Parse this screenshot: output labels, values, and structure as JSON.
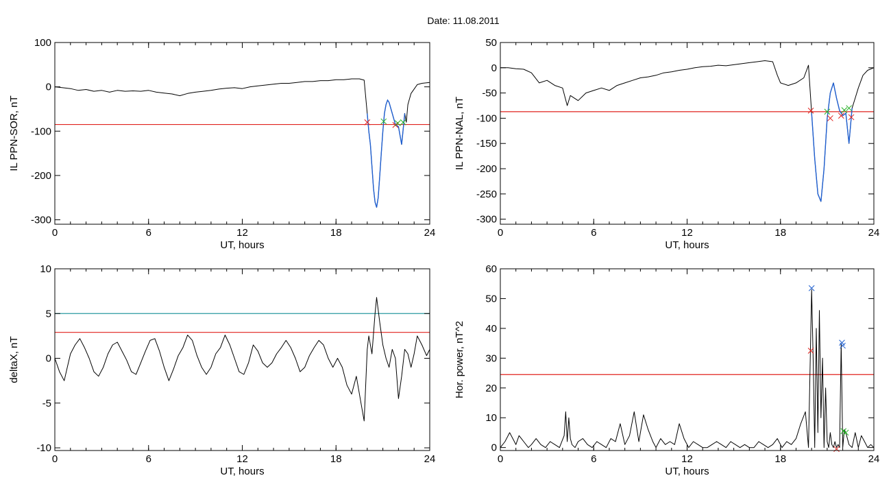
{
  "figure_title": "Date:  11.08.2011",
  "colors": {
    "trace": "#000000",
    "highlight": "#1f5fd0",
    "threshold": "#e0201c",
    "threshold2": "#2a9aa0",
    "marker_red": "#e0201c",
    "marker_green": "#22b022",
    "marker_blue": "#2060d0"
  },
  "chart_data": [
    {
      "id": "sor",
      "type": "line",
      "xlabel": "UT, hours",
      "ylabel": "IL PPN-SOR, nT",
      "xlim": [
        0,
        24
      ],
      "ylim": [
        -310,
        100
      ],
      "xticks": [
        "0",
        "6",
        "12",
        "18",
        "24"
      ],
      "yticks": [
        "100",
        "0",
        "-100",
        "-200",
        "-300"
      ],
      "series": [
        {
          "x": [
            0,
            0.5,
            1,
            1.5,
            2,
            2.5,
            3,
            3.5,
            4,
            4.5,
            5,
            5.5,
            6,
            6.5,
            7,
            7.5,
            8,
            8.5,
            9,
            9.5,
            10,
            10.5,
            11,
            11.5,
            12,
            12.5,
            13,
            13.5,
            14,
            14.5,
            15,
            15.5,
            16,
            16.5,
            17,
            17.5,
            18,
            18.5,
            19,
            19.5,
            19.8,
            20,
            20.1,
            20.2,
            20.3,
            20.4,
            20.5,
            20.6,
            20.7,
            20.8,
            20.9,
            21,
            21.1,
            21.2,
            21.3,
            21.4,
            21.6,
            21.8,
            22,
            22.1,
            22.2,
            22.3,
            22.4,
            22.5,
            22.6,
            22.8,
            23,
            23.2,
            23.5,
            24
          ],
          "y": [
            0,
            -2,
            -4,
            -8,
            -6,
            -10,
            -8,
            -12,
            -8,
            -10,
            -9,
            -10,
            -8,
            -12,
            -14,
            -16,
            -20,
            -15,
            -12,
            -10,
            -8,
            -5,
            -3,
            -2,
            -4,
            0,
            2,
            4,
            6,
            8,
            8,
            10,
            12,
            12,
            14,
            14,
            16,
            16,
            18,
            18,
            15,
            -60,
            -100,
            -130,
            -180,
            -230,
            -260,
            -272,
            -250,
            -200,
            -150,
            -100,
            -60,
            -40,
            -30,
            -35,
            -60,
            -85,
            -90,
            -110,
            -130,
            -95,
            -60,
            -80,
            -40,
            -15,
            -5,
            5,
            8,
            10
          ]
        }
      ],
      "highlight": {
        "from": 20.0,
        "to": 22.4
      },
      "thresholds": [
        {
          "y": -85,
          "color": "#e0201c"
        }
      ],
      "markers": [
        {
          "x": 20.0,
          "y": -80,
          "color": "#e0201c"
        },
        {
          "x": 21.05,
          "y": -78,
          "color": "#22b022"
        },
        {
          "x": 21.8,
          "y": -86,
          "color": "#e0201c"
        },
        {
          "x": 21.95,
          "y": -82,
          "color": "#22b022"
        },
        {
          "x": 22.3,
          "y": -80,
          "color": "#22b022"
        }
      ]
    },
    {
      "id": "nal",
      "type": "line",
      "xlabel": "UT, hours",
      "ylabel": "IL PPN-NAL, nT",
      "xlim": [
        0,
        24
      ],
      "ylim": [
        -310,
        50
      ],
      "xticks": [
        "0",
        "6",
        "12",
        "18",
        "24"
      ],
      "yticks": [
        "50",
        "0",
        "-50",
        "-100",
        "-150",
        "-200",
        "-250",
        "-300"
      ],
      "series": [
        {
          "x": [
            0,
            0.5,
            1,
            1.5,
            2,
            2.5,
            3,
            3.5,
            4,
            4.3,
            4.5,
            5,
            5.5,
            6,
            6.5,
            7,
            7.5,
            8,
            8.5,
            9,
            9.5,
            10,
            10.5,
            11,
            11.5,
            12,
            12.5,
            13,
            13.5,
            14,
            14.5,
            15,
            15.5,
            16,
            16.5,
            17,
            17.5,
            17.8,
            18,
            18.5,
            19,
            19.5,
            19.8,
            20,
            20.2,
            20.4,
            20.6,
            20.8,
            21,
            21.2,
            21.4,
            21.6,
            21.8,
            22,
            22.2,
            22.4,
            22.6,
            22.8,
            23,
            23.3,
            23.6,
            24
          ],
          "y": [
            0,
            0,
            -2,
            -3,
            -10,
            -30,
            -25,
            -35,
            -40,
            -75,
            -55,
            -65,
            -50,
            -45,
            -40,
            -45,
            -35,
            -30,
            -25,
            -20,
            -18,
            -15,
            -10,
            -8,
            -5,
            -3,
            0,
            2,
            3,
            5,
            4,
            6,
            8,
            10,
            12,
            14,
            12,
            -15,
            -30,
            -35,
            -30,
            -20,
            5,
            -90,
            -180,
            -250,
            -265,
            -200,
            -100,
            -50,
            -30,
            -60,
            -85,
            -95,
            -90,
            -150,
            -80,
            -60,
            -40,
            -15,
            -5,
            0
          ]
        }
      ],
      "highlight": {
        "from": 20.0,
        "to": 22.6
      },
      "thresholds": [
        {
          "y": -87,
          "color": "#e0201c"
        }
      ],
      "markers": [
        {
          "x": 19.95,
          "y": -85,
          "color": "#e0201c"
        },
        {
          "x": 21.0,
          "y": -87,
          "color": "#22b022"
        },
        {
          "x": 21.2,
          "y": -100,
          "color": "#e0201c"
        },
        {
          "x": 21.9,
          "y": -95,
          "color": "#e0201c"
        },
        {
          "x": 22.1,
          "y": -84,
          "color": "#22b022"
        },
        {
          "x": 22.4,
          "y": -80,
          "color": "#22b022"
        },
        {
          "x": 22.55,
          "y": -98,
          "color": "#e0201c"
        }
      ]
    },
    {
      "id": "deltax",
      "type": "line",
      "xlabel": "UT, hours",
      "ylabel": "deltaX, nT",
      "xlim": [
        0,
        24
      ],
      "ylim": [
        -10.3,
        10
      ],
      "xticks": [
        "0",
        "6",
        "12",
        "18",
        "24"
      ],
      "yticks": [
        "10",
        "5",
        "0",
        "-5",
        "-10"
      ],
      "series": [
        {
          "x": [
            0,
            0.3,
            0.6,
            0.8,
            1,
            1.3,
            1.6,
            1.9,
            2.2,
            2.5,
            2.8,
            3.1,
            3.4,
            3.7,
            4,
            4.3,
            4.6,
            4.9,
            5.2,
            5.5,
            5.8,
            6.1,
            6.4,
            6.7,
            7,
            7.3,
            7.6,
            7.9,
            8.2,
            8.5,
            8.8,
            9.1,
            9.4,
            9.7,
            10,
            10.3,
            10.6,
            10.9,
            11.2,
            11.5,
            11.8,
            12.1,
            12.4,
            12.7,
            13,
            13.3,
            13.6,
            13.9,
            14.2,
            14.5,
            14.8,
            15.1,
            15.4,
            15.7,
            16,
            16.3,
            16.6,
            16.9,
            17.2,
            17.5,
            17.8,
            18.1,
            18.4,
            18.7,
            19,
            19.3,
            19.6,
            19.8,
            20,
            20.1,
            20.3,
            20.5,
            20.6,
            20.8,
            21,
            21.2,
            21.4,
            21.6,
            21.8,
            22,
            22.2,
            22.4,
            22.6,
            22.8,
            23,
            23.2,
            23.5,
            23.8,
            24
          ],
          "y": [
            0,
            -1.5,
            -2.5,
            -1,
            0.5,
            1.5,
            2.2,
            1.2,
            0,
            -1.5,
            -2,
            -1,
            0.5,
            1.5,
            1.8,
            0.8,
            -0.2,
            -1.5,
            -1.8,
            -0.5,
            0.8,
            2,
            2.2,
            0.8,
            -1,
            -2.5,
            -1.2,
            0.3,
            1.2,
            2.6,
            2,
            0.3,
            -1,
            -1.8,
            -1,
            0.5,
            1.2,
            2.6,
            1.5,
            0,
            -1.5,
            -1.8,
            -0.5,
            1.5,
            0.8,
            -0.5,
            -1,
            -0.5,
            0.5,
            1.2,
            2,
            1.2,
            0,
            -1.5,
            -1,
            0.3,
            1.2,
            2,
            1.5,
            0,
            -1,
            0,
            -1,
            -3,
            -4,
            -2,
            -5,
            -7,
            1,
            2.5,
            0.5,
            5,
            6.8,
            4,
            1.5,
            0,
            -1,
            1,
            0,
            -4.5,
            -2,
            1,
            0.5,
            -1,
            0.5,
            2.5,
            1.5,
            0.3,
            1
          ]
        }
      ],
      "thresholds": [
        {
          "y": 5,
          "color": "#2a9aa0"
        },
        {
          "y": 2.9,
          "color": "#e0201c"
        }
      ],
      "markers": []
    },
    {
      "id": "horpower",
      "type": "line",
      "xlabel": "UT, hours",
      "ylabel": "Hor. power, nT^2",
      "xlim": [
        0,
        24
      ],
      "ylim": [
        -1,
        60
      ],
      "xticks": [
        "0",
        "6",
        "12",
        "18",
        "24"
      ],
      "yticks": [
        "60",
        "50",
        "40",
        "30",
        "20",
        "10",
        "0"
      ],
      "series": [
        {
          "x": [
            0,
            0.3,
            0.6,
            0.8,
            1,
            1.2,
            1.5,
            1.8,
            2,
            2.3,
            2.6,
            2.9,
            3.2,
            3.5,
            3.8,
            4.1,
            4.2,
            4.3,
            4.4,
            4.5,
            4.6,
            4.8,
            5,
            5.3,
            5.6,
            5.9,
            6.2,
            6.5,
            6.8,
            7.1,
            7.4,
            7.7,
            8,
            8.3,
            8.6,
            8.9,
            9.2,
            9.5,
            9.8,
            10,
            10.3,
            10.6,
            10.9,
            11.2,
            11.5,
            11.8,
            12.1,
            12.4,
            12.7,
            13,
            13.3,
            13.6,
            13.9,
            14.2,
            14.5,
            14.8,
            15.1,
            15.4,
            15.7,
            16,
            16.3,
            16.6,
            16.9,
            17.2,
            17.5,
            17.8,
            18.1,
            18.4,
            18.7,
            19,
            19.3,
            19.6,
            19.8,
            20,
            20.1,
            20.2,
            20.3,
            20.4,
            20.5,
            20.6,
            20.7,
            20.8,
            20.9,
            21,
            21.1,
            21.2,
            21.3,
            21.4,
            21.5,
            21.6,
            21.7,
            21.8,
            21.9,
            22,
            22.1,
            22.2,
            22.4,
            22.6,
            22.8,
            23,
            23.2,
            23.4,
            23.6,
            23.8,
            24
          ],
          "y": [
            0,
            2,
            5,
            3,
            1,
            4,
            2,
            0,
            1,
            3,
            1,
            0,
            2,
            1,
            0,
            4,
            12,
            2,
            10,
            3,
            1,
            0,
            2,
            3,
            1,
            0,
            2,
            1,
            0,
            3,
            2,
            8,
            1,
            4,
            12,
            2,
            11,
            6,
            2,
            0,
            3,
            1,
            2,
            1,
            8,
            3,
            0,
            2,
            1,
            0,
            0,
            1,
            2,
            1,
            0,
            2,
            1,
            0,
            1,
            0,
            0,
            2,
            1,
            0,
            1,
            3,
            0,
            2,
            1,
            3,
            8,
            12,
            0,
            53,
            30,
            0,
            40,
            5,
            46,
            10,
            30,
            0,
            20,
            2,
            0,
            5,
            1,
            0,
            2,
            0,
            1,
            0,
            35,
            0,
            6,
            5,
            1,
            0,
            5,
            0,
            4,
            2,
            0,
            1,
            0
          ]
        }
      ],
      "thresholds": [
        {
          "y": 24.5,
          "color": "#e0201c"
        }
      ],
      "markers": [
        {
          "x": 20.0,
          "y": 53.5,
          "color": "#2060d0"
        },
        {
          "x": 19.95,
          "y": 32.5,
          "color": "#e0201c"
        },
        {
          "x": 21.95,
          "y": 35.2,
          "color": "#2060d0"
        },
        {
          "x": 22.0,
          "y": 34.2,
          "color": "#2060d0"
        },
        {
          "x": 21.6,
          "y": -0.5,
          "color": "#e0201c"
        },
        {
          "x": 22.05,
          "y": 5.5,
          "color": "#22b022"
        },
        {
          "x": 22.2,
          "y": 5.0,
          "color": "#22b022"
        }
      ]
    }
  ]
}
